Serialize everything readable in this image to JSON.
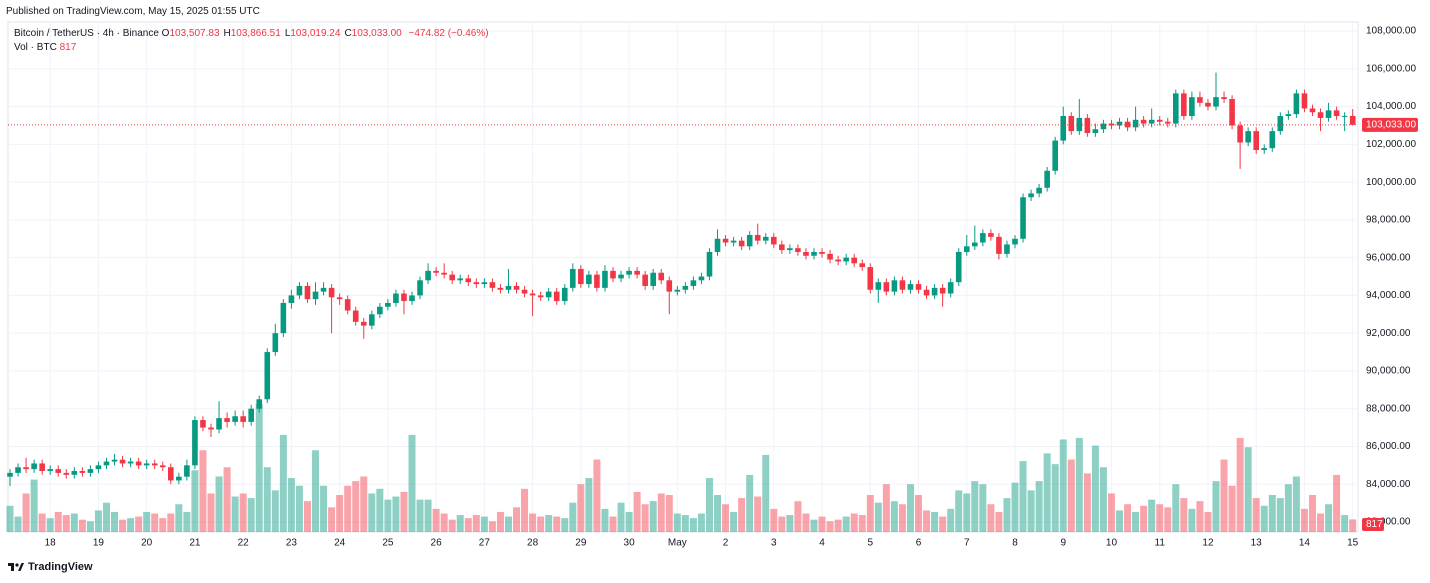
{
  "published": "Published on TradingView.com, May 15, 2025 01:55 UTC",
  "footer": "TradingView",
  "chart_data": {
    "type": "candlestick",
    "legend": {
      "symbol": "Bitcoin / TetherUS · 4h · Binance",
      "ohlc": [
        {
          "label": "O",
          "value": "103,507.83"
        },
        {
          "label": "H",
          "value": "103,866.51"
        },
        {
          "label": "L",
          "value": "103,019.24"
        },
        {
          "label": "C",
          "value": "103,033.00"
        }
      ],
      "change": "−474.82 (−0.46%)",
      "volume_title": "Vol · BTC"
    },
    "last_price_label": "103,033.00",
    "up_color": "#089981",
    "down_color": "#f23645",
    "grid": true,
    "ylim": [
      81470,
      108480
    ],
    "yticks": [
      {
        "value": 108000,
        "label": "108,000.00"
      },
      {
        "value": 106000,
        "label": "106,000.00"
      },
      {
        "value": 104000,
        "label": "104,000.00"
      },
      {
        "value": 102000,
        "label": "102,000.00"
      },
      {
        "value": 100000,
        "label": "100,000.00"
      },
      {
        "value": 98000,
        "label": "98,000.00"
      },
      {
        "value": 96000,
        "label": "96,000.00"
      },
      {
        "value": 94000,
        "label": "94,000.00"
      },
      {
        "value": 92000,
        "label": "92,000.00"
      },
      {
        "value": 90000,
        "label": "90,000.00"
      },
      {
        "value": 88000,
        "label": "88,000.00"
      },
      {
        "value": 86000,
        "label": "86,000.00"
      },
      {
        "value": 84000,
        "label": "84,000.00"
      },
      {
        "value": 82000,
        "label": "82,000.00"
      }
    ],
    "categories": [
      null,
      null,
      null,
      null,
      null,
      "18",
      null,
      null,
      null,
      null,
      null,
      "19",
      null,
      null,
      null,
      null,
      null,
      "20",
      null,
      null,
      null,
      null,
      null,
      "21",
      null,
      null,
      null,
      null,
      null,
      "22",
      null,
      null,
      null,
      null,
      null,
      "23",
      null,
      null,
      null,
      null,
      null,
      "24",
      null,
      null,
      null,
      null,
      null,
      "25",
      null,
      null,
      null,
      null,
      null,
      "26",
      null,
      null,
      null,
      null,
      null,
      "27",
      null,
      null,
      null,
      null,
      null,
      "28",
      null,
      null,
      null,
      null,
      null,
      "29",
      null,
      null,
      null,
      null,
      null,
      "30",
      null,
      null,
      null,
      null,
      null,
      "May",
      null,
      null,
      null,
      null,
      null,
      "2",
      null,
      null,
      null,
      null,
      null,
      "3",
      null,
      null,
      null,
      null,
      null,
      "4",
      null,
      null,
      null,
      null,
      null,
      "5",
      null,
      null,
      null,
      null,
      null,
      "6",
      null,
      null,
      null,
      null,
      null,
      "7",
      null,
      null,
      null,
      null,
      null,
      "8",
      null,
      null,
      null,
      null,
      null,
      "9",
      null,
      null,
      null,
      null,
      null,
      "10",
      null,
      null,
      null,
      null,
      null,
      "11",
      null,
      null,
      null,
      null,
      null,
      "12",
      null,
      null,
      null,
      null,
      null,
      "13",
      null,
      null,
      null,
      null,
      null,
      "14",
      null,
      null,
      null,
      null,
      null,
      "15"
    ],
    "open": [
      84400,
      84600,
      84900,
      84800,
      85100,
      84700,
      84800,
      84600,
      84500,
      84700,
      84600,
      84800,
      85000,
      85200,
      85300,
      85100,
      85200,
      85000,
      85100,
      85000,
      84900,
      84200,
      84400,
      85000,
      87400,
      87000,
      86900,
      87500,
      87300,
      87600,
      87300,
      88000,
      88500,
      91000,
      92000,
      93600,
      94000,
      94500,
      93800,
      94200,
      94400,
      93900,
      93800,
      93200,
      92600,
      92400,
      93000,
      93400,
      93600,
      94100,
      93700,
      94000,
      94800,
      95300,
      95200,
      95100,
      94800,
      94900,
      94700,
      94600,
      94700,
      94400,
      94300,
      94500,
      94300,
      94100,
      94000,
      93900,
      94200,
      93700,
      94400,
      95400,
      94600,
      95100,
      94400,
      95300,
      94900,
      95100,
      95300,
      95100,
      94500,
      95200,
      94800,
      94200,
      94300,
      94500,
      94800,
      95000,
      96300,
      97000,
      96800,
      96900,
      96600,
      97200,
      96900,
      97100,
      96700,
      96400,
      96500,
      96300,
      96100,
      96300,
      96200,
      95900,
      95800,
      96000,
      95700,
      95500,
      94300,
      94700,
      94200,
      94800,
      94300,
      94600,
      94300,
      94000,
      94400,
      94100,
      94700,
      96300,
      96600,
      96800,
      97300,
      97100,
      96200,
      96700,
      97000,
      99200,
      99400,
      99700,
      100600,
      102200,
      103500,
      102700,
      103400,
      102600,
      102800,
      103100,
      103000,
      103200,
      102900,
      103300,
      103100,
      103300,
      103200,
      103100,
      104700,
      103500,
      104500,
      104200,
      104000,
      104500,
      104400,
      103000,
      102100,
      102700,
      101700,
      101800,
      102700,
      103500,
      103600,
      104700,
      103900,
      103700,
      103400,
      103800,
      103500,
      103507.83
    ],
    "high": [
      84800,
      85100,
      85400,
      85300,
      85300,
      85000,
      85000,
      84800,
      84900,
      84900,
      85000,
      85200,
      85400,
      85600,
      85500,
      85400,
      85400,
      85300,
      85300,
      85200,
      85100,
      84600,
      85300,
      87600,
      87600,
      87200,
      88400,
      87800,
      87900,
      87900,
      88200,
      88700,
      91200,
      92500,
      93800,
      94300,
      94700,
      94700,
      94700,
      94700,
      94600,
      94100,
      94000,
      93400,
      92800,
      93200,
      93600,
      93800,
      94300,
      94300,
      94200,
      95000,
      95700,
      95500,
      95700,
      95300,
      95100,
      95100,
      94900,
      94900,
      94900,
      94600,
      95400,
      94700,
      94500,
      94300,
      94200,
      94400,
      94400,
      94600,
      95700,
      95600,
      95300,
      95300,
      95600,
      95500,
      95300,
      95500,
      95500,
      95300,
      95400,
      95400,
      95000,
      94500,
      94700,
      95000,
      95200,
      96500,
      97500,
      97200,
      97100,
      97100,
      97400,
      97800,
      97300,
      97300,
      96900,
      96700,
      96700,
      96500,
      96500,
      96500,
      96400,
      96100,
      96200,
      96200,
      95900,
      95700,
      94900,
      94900,
      95000,
      95000,
      94800,
      94800,
      94500,
      94600,
      94600,
      94900,
      96500,
      97200,
      97700,
      97500,
      97500,
      97300,
      96900,
      97200,
      99400,
      99600,
      99900,
      100800,
      102400,
      104000,
      103700,
      104400,
      103600,
      103100,
      103300,
      103300,
      103400,
      103400,
      104000,
      103500,
      103900,
      103500,
      103400,
      104900,
      104900,
      104800,
      104800,
      104400,
      105800,
      104800,
      104600,
      103200,
      102900,
      102900,
      102000,
      102900,
      103700,
      103800,
      104900,
      104900,
      104100,
      103900,
      104200,
      104000,
      103700,
      103866.51
    ],
    "low": [
      83900,
      84400,
      84600,
      84600,
      84500,
      84500,
      84400,
      84300,
      84300,
      84400,
      84400,
      84600,
      84800,
      85000,
      84900,
      84900,
      84800,
      84800,
      84800,
      84700,
      84000,
      84000,
      84200,
      84800,
      86800,
      86500,
      86700,
      87000,
      87100,
      87000,
      87100,
      87800,
      88300,
      90800,
      91800,
      93300,
      93800,
      93600,
      93500,
      94000,
      92000,
      93500,
      93000,
      92400,
      91700,
      92200,
      92800,
      93200,
      93400,
      93000,
      93500,
      93800,
      94600,
      95000,
      94900,
      94600,
      94600,
      94500,
      94400,
      94400,
      94200,
      94100,
      94100,
      94100,
      93900,
      92900,
      93700,
      93700,
      93500,
      93500,
      94200,
      94400,
      94400,
      94200,
      94200,
      94700,
      94700,
      94900,
      94900,
      94300,
      94300,
      94600,
      93000,
      94000,
      94100,
      94300,
      94600,
      94800,
      96100,
      96600,
      96600,
      96400,
      96400,
      96700,
      96700,
      96500,
      96200,
      96200,
      96100,
      95900,
      95900,
      96000,
      95700,
      95600,
      95600,
      95500,
      95300,
      94100,
      93600,
      94000,
      94000,
      94100,
      94100,
      94100,
      93800,
      93800,
      93400,
      93900,
      94500,
      96100,
      96400,
      96600,
      96900,
      95900,
      96000,
      96500,
      96800,
      99000,
      99200,
      99500,
      100400,
      102000,
      102500,
      102500,
      102400,
      102400,
      102600,
      102800,
      102800,
      102700,
      102700,
      102900,
      102900,
      103000,
      102900,
      102900,
      103300,
      103300,
      104000,
      103800,
      103800,
      104200,
      102800,
      100700,
      101900,
      101500,
      101500,
      101600,
      102500,
      103300,
      103400,
      103700,
      103500,
      102700,
      103200,
      103300,
      102700,
      103019.24
    ],
    "close": [
      84600,
      84900,
      84800,
      85100,
      84700,
      84800,
      84600,
      84500,
      84700,
      84600,
      84800,
      85000,
      85200,
      85300,
      85100,
      85200,
      85000,
      85100,
      85000,
      84900,
      84200,
      84400,
      85000,
      87400,
      87000,
      86900,
      87500,
      87300,
      87600,
      87300,
      88000,
      88500,
      91000,
      92000,
      93600,
      94000,
      94500,
      93800,
      94200,
      94400,
      93900,
      93800,
      93200,
      92600,
      92400,
      93000,
      93400,
      93600,
      94100,
      93700,
      94000,
      94800,
      95300,
      95200,
      95100,
      94800,
      94900,
      94700,
      94600,
      94700,
      94400,
      94300,
      94500,
      94300,
      94100,
      94000,
      93900,
      94200,
      93700,
      94400,
      95400,
      94600,
      95100,
      94400,
      95300,
      94900,
      95100,
      95300,
      95100,
      94500,
      95200,
      94800,
      94200,
      94300,
      94500,
      94800,
      95000,
      96300,
      97000,
      96800,
      96900,
      96600,
      97200,
      96900,
      97100,
      96700,
      96400,
      96500,
      96300,
      96100,
      96300,
      96200,
      95900,
      95800,
      96000,
      95700,
      95500,
      94300,
      94700,
      94200,
      94800,
      94300,
      94600,
      94300,
      94000,
      94400,
      94100,
      94700,
      96300,
      96600,
      96800,
      97300,
      97100,
      96200,
      96700,
      97000,
      99200,
      99400,
      99700,
      100600,
      102200,
      103500,
      102700,
      103400,
      102600,
      102800,
      103100,
      103000,
      103200,
      102900,
      103300,
      103100,
      103300,
      103200,
      103100,
      104700,
      103500,
      104500,
      104200,
      104000,
      104500,
      104400,
      103000,
      102100,
      102700,
      101700,
      101800,
      102700,
      103500,
      103600,
      104700,
      103900,
      103700,
      103400,
      103800,
      103500,
      103507.83,
      103033
    ],
    "volume": [
      1700,
      1000,
      2500,
      3400,
      1200,
      900,
      1300,
      1100,
      1200,
      800,
      700,
      1400,
      1900,
      1300,
      800,
      900,
      1000,
      1300,
      1200,
      900,
      1200,
      1800,
      1300,
      4000,
      5300,
      2500,
      3600,
      4200,
      2300,
      2500,
      2200,
      8300,
      4200,
      2700,
      6300,
      3500,
      3000,
      2000,
      5300,
      3000,
      1600,
      2400,
      3000,
      3300,
      3600,
      2500,
      2800,
      2100,
      2300,
      2600,
      6300,
      2100,
      2100,
      1500,
      1200,
      800,
      1100,
      900,
      1100,
      1000,
      700,
      1300,
      1000,
      1600,
      2800,
      1200,
      1000,
      1100,
      1000,
      900,
      1900,
      3100,
      3500,
      4700,
      1500,
      1000,
      1900,
      1300,
      2600,
      1800,
      2000,
      2500,
      2400,
      1200,
      1100,
      900,
      1200,
      3500,
      2400,
      1800,
      1300,
      2200,
      3700,
      2300,
      5000,
      1500,
      1000,
      1100,
      2000,
      1200,
      800,
      1000,
      700,
      800,
      1000,
      1200,
      1100,
      2400,
      1900,
      3100,
      2000,
      1800,
      3100,
      2400,
      1400,
      1300,
      1000,
      1500,
      2700,
      2500,
      3300,
      3100,
      1800,
      1300,
      2200,
      3200,
      4600,
      2700,
      3300,
      5100,
      4400,
      6000,
      4700,
      6100,
      3800,
      5600,
      4200,
      2500,
      1400,
      1800,
      1300,
      1700,
      2100,
      1800,
      1600,
      3100,
      2200,
      1500,
      2000,
      1300,
      3300,
      4700,
      3000,
      6100,
      5500,
      2200,
      1700,
      2400,
      2200,
      3100,
      3600,
      1500,
      2400,
      1200,
      1800,
      3700,
      1100,
      817
    ]
  }
}
